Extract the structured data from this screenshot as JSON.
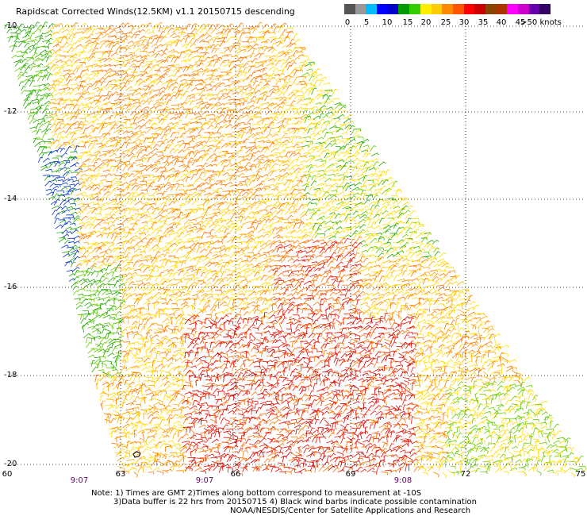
{
  "title": "Rapidscat Corrected Winds(12.5KM) v1.1 20150715 descending",
  "legend": {
    "colors": [
      "#555555",
      "#999999",
      "#00bbff",
      "#0000ff",
      "#0000cc",
      "#009900",
      "#33cc00",
      "#ffee00",
      "#ffcc00",
      "#ff8800",
      "#ff5500",
      "#ff0000",
      "#cc0000",
      "#884400",
      "#aa3300",
      "#ff00ff",
      "#cc00cc",
      "#6600aa",
      "#330066"
    ],
    "labels": [
      "0",
      "5",
      "10",
      "15",
      "20",
      "25",
      "30",
      "35",
      "40",
      "45",
      ">50 knots"
    ]
  },
  "lat_labels": [
    "-10",
    "-12",
    "-14",
    "-16",
    "-18",
    "-20"
  ],
  "lon_labels": [
    "60",
    "63",
    "66",
    "69",
    "72",
    "75"
  ],
  "time_labels": [
    "9:07",
    "9:07",
    "9:08"
  ],
  "notes": [
    "Note: 1) Times are GMT 2)Times along bottom correspond to measurement at -10S",
    "3)Data buffer is 22 hrs from 20150715 4) Black wind barbs indicate possible contamination",
    "NOAA/NESDIS/Center for Satellite Applications and Research"
  ]
}
